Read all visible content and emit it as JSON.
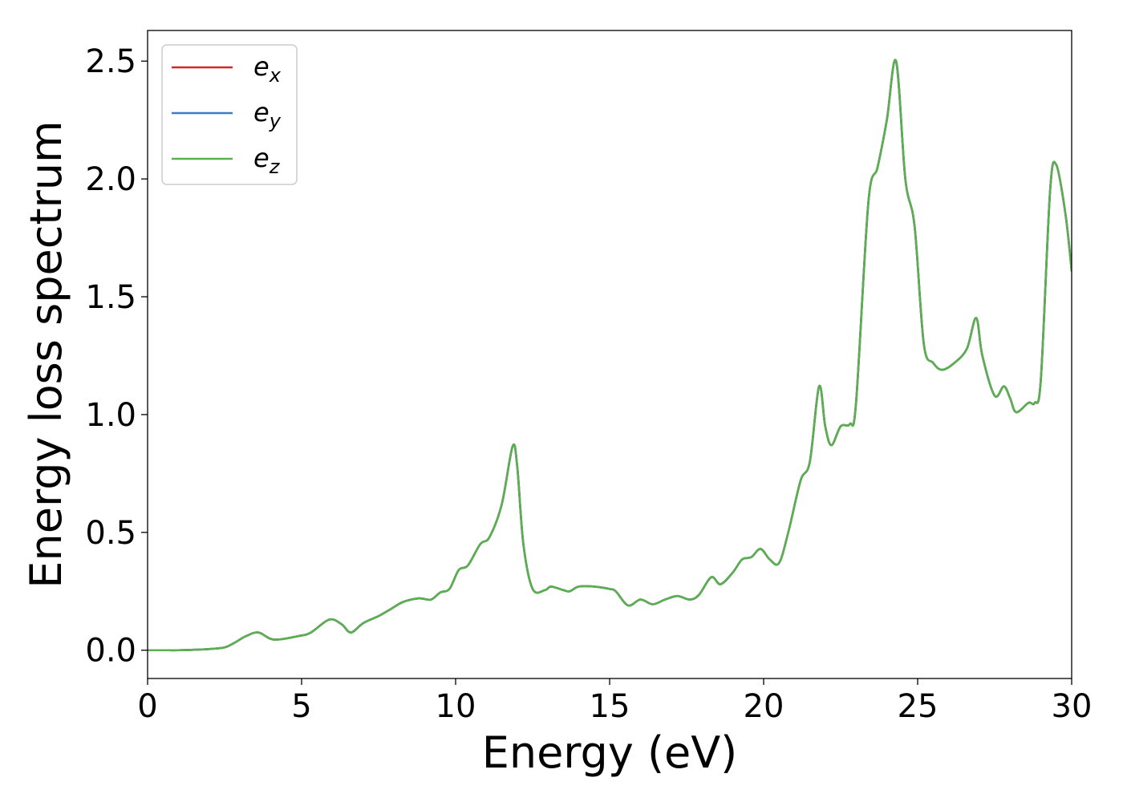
{
  "chart_data": {
    "type": "line",
    "title": "",
    "xlabel": "Energy (eV)",
    "ylabel": "Energy loss spectrum",
    "xlim": [
      0,
      30
    ],
    "ylim": [
      -0.12,
      2.63
    ],
    "xticks": [
      0,
      5,
      10,
      15,
      20,
      25,
      30
    ],
    "yticks": [
      0.0,
      0.5,
      1.0,
      1.5,
      2.0,
      2.5
    ],
    "xtick_labels": [
      "0",
      "5",
      "10",
      "15",
      "20",
      "25",
      "30"
    ],
    "ytick_labels": [
      "0.0",
      "0.5",
      "1.0",
      "1.5",
      "2.0",
      "2.5"
    ],
    "grid": false,
    "legend_position": "top-left",
    "x": [
      0,
      0.5,
      1.0,
      1.5,
      2.0,
      2.5,
      2.8,
      3.2,
      3.6,
      4.1,
      4.9,
      5.3,
      5.9,
      6.3,
      6.6,
      7.0,
      7.5,
      7.9,
      8.3,
      8.8,
      9.2,
      9.5,
      9.8,
      10.1,
      10.4,
      10.8,
      11.1,
      11.5,
      11.85,
      12.0,
      12.2,
      12.5,
      12.9,
      13.1,
      13.5,
      13.7,
      14.0,
      14.5,
      15.0,
      15.2,
      15.6,
      16.0,
      16.4,
      16.8,
      17.2,
      17.6,
      17.9,
      18.3,
      18.6,
      19.0,
      19.3,
      19.6,
      19.9,
      20.2,
      20.5,
      20.8,
      21.2,
      21.5,
      21.8,
      22.0,
      22.2,
      22.5,
      22.8,
      23.0,
      23.4,
      23.7,
      24.0,
      24.3,
      24.6,
      24.9,
      25.2,
      25.5,
      25.8,
      26.2,
      26.6,
      26.9,
      27.1,
      27.5,
      27.8,
      28.0,
      28.2,
      28.6,
      28.8,
      29.0,
      29.3,
      29.5,
      29.8,
      30.0
    ],
    "series": [
      {
        "name": "e_x",
        "label_base": "e",
        "label_sub": "x",
        "color": "#d62728",
        "values": [
          0.0,
          0.0,
          0.0,
          0.002,
          0.005,
          0.012,
          0.03,
          0.06,
          0.075,
          0.045,
          0.06,
          0.075,
          0.13,
          0.11,
          0.075,
          0.115,
          0.145,
          0.175,
          0.205,
          0.22,
          0.215,
          0.245,
          0.26,
          0.34,
          0.36,
          0.45,
          0.48,
          0.62,
          0.865,
          0.78,
          0.45,
          0.26,
          0.255,
          0.27,
          0.255,
          0.25,
          0.27,
          0.27,
          0.26,
          0.25,
          0.19,
          0.215,
          0.195,
          0.215,
          0.23,
          0.215,
          0.235,
          0.31,
          0.28,
          0.33,
          0.385,
          0.395,
          0.43,
          0.385,
          0.37,
          0.5,
          0.72,
          0.8,
          1.12,
          0.95,
          0.87,
          0.95,
          0.96,
          1.05,
          1.9,
          2.05,
          2.25,
          2.5,
          2.0,
          1.8,
          1.3,
          1.22,
          1.19,
          1.22,
          1.28,
          1.41,
          1.25,
          1.08,
          1.12,
          1.07,
          1.01,
          1.05,
          1.05,
          1.15,
          1.95,
          2.06,
          1.85,
          1.61
        ]
      },
      {
        "name": "e_y",
        "label_base": "e",
        "label_sub": "y",
        "color": "#3a7fc4",
        "values": [
          0.0,
          0.0,
          0.0,
          0.002,
          0.005,
          0.012,
          0.03,
          0.06,
          0.075,
          0.045,
          0.06,
          0.075,
          0.13,
          0.11,
          0.075,
          0.115,
          0.145,
          0.175,
          0.205,
          0.22,
          0.215,
          0.245,
          0.26,
          0.34,
          0.36,
          0.45,
          0.48,
          0.62,
          0.865,
          0.78,
          0.45,
          0.26,
          0.255,
          0.27,
          0.255,
          0.25,
          0.27,
          0.27,
          0.26,
          0.25,
          0.19,
          0.215,
          0.195,
          0.215,
          0.23,
          0.215,
          0.235,
          0.31,
          0.28,
          0.33,
          0.385,
          0.395,
          0.43,
          0.385,
          0.37,
          0.5,
          0.72,
          0.8,
          1.12,
          0.95,
          0.87,
          0.95,
          0.96,
          1.05,
          1.9,
          2.05,
          2.25,
          2.5,
          2.0,
          1.8,
          1.3,
          1.22,
          1.19,
          1.22,
          1.28,
          1.41,
          1.25,
          1.08,
          1.12,
          1.07,
          1.01,
          1.05,
          1.05,
          1.15,
          1.95,
          2.06,
          1.85,
          1.61
        ]
      },
      {
        "name": "e_z",
        "label_base": "e",
        "label_sub": "z",
        "color": "#5aaf4f",
        "values": [
          0.0,
          0.0,
          0.0,
          0.002,
          0.005,
          0.012,
          0.03,
          0.06,
          0.075,
          0.045,
          0.06,
          0.075,
          0.13,
          0.11,
          0.075,
          0.115,
          0.145,
          0.175,
          0.205,
          0.22,
          0.215,
          0.245,
          0.26,
          0.34,
          0.36,
          0.45,
          0.48,
          0.62,
          0.865,
          0.78,
          0.45,
          0.26,
          0.255,
          0.27,
          0.255,
          0.25,
          0.27,
          0.27,
          0.26,
          0.25,
          0.19,
          0.215,
          0.195,
          0.215,
          0.23,
          0.215,
          0.235,
          0.31,
          0.28,
          0.33,
          0.385,
          0.395,
          0.43,
          0.385,
          0.37,
          0.5,
          0.72,
          0.8,
          1.12,
          0.95,
          0.87,
          0.95,
          0.96,
          1.05,
          1.9,
          2.05,
          2.25,
          2.5,
          2.0,
          1.8,
          1.3,
          1.22,
          1.19,
          1.22,
          1.28,
          1.41,
          1.25,
          1.08,
          1.12,
          1.07,
          1.01,
          1.05,
          1.05,
          1.15,
          1.95,
          2.06,
          1.85,
          1.61
        ]
      }
    ]
  }
}
